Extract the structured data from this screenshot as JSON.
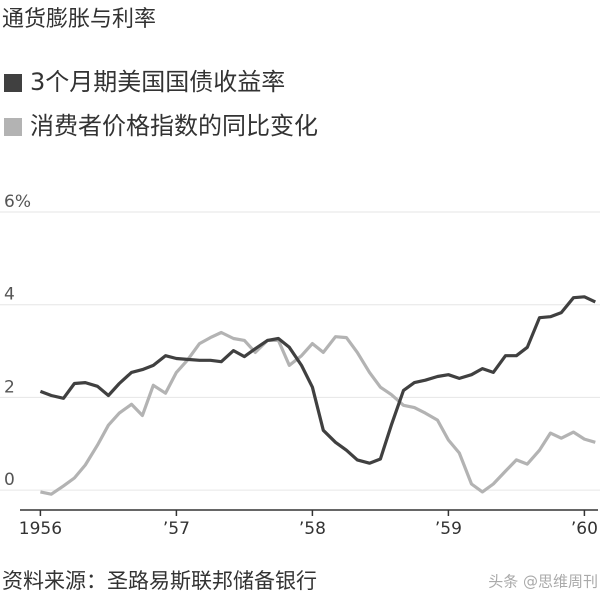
{
  "chart_data": {
    "type": "line",
    "title": "通货膨胀与利率",
    "source": "资料来源：圣路易斯联邦储备银行",
    "watermark": "头条 @思维周刊",
    "x": [
      1956,
      1956.08,
      1956.17,
      1956.25,
      1956.33,
      1956.42,
      1956.5,
      1956.58,
      1956.67,
      1956.75,
      1956.83,
      1956.92,
      1957,
      1957.08,
      1957.17,
      1957.25,
      1957.33,
      1957.42,
      1957.5,
      1957.58,
      1957.67,
      1957.75,
      1957.83,
      1957.92,
      1958,
      1958.08,
      1958.17,
      1958.25,
      1958.33,
      1958.42,
      1958.5,
      1958.58,
      1958.67,
      1958.75,
      1958.83,
      1958.92,
      1959,
      1959.08,
      1959.17,
      1959.25,
      1959.33,
      1959.42,
      1959.5,
      1959.58,
      1959.67,
      1959.75,
      1959.83,
      1959.92,
      1960,
      1960.08
    ],
    "series": [
      {
        "name": "3个月期美国国债收益率",
        "color": "#404040",
        "values": [
          2.13,
          2.04,
          1.98,
          2.3,
          2.32,
          2.24,
          2.04,
          2.3,
          2.54,
          2.6,
          2.69,
          2.9,
          2.84,
          2.82,
          2.8,
          2.8,
          2.77,
          3.01,
          2.88,
          3.05,
          3.23,
          3.27,
          3.08,
          2.69,
          2.22,
          1.29,
          1.03,
          0.86,
          0.65,
          0.58,
          0.67,
          1.4,
          2.15,
          2.32,
          2.37,
          2.45,
          2.49,
          2.41,
          2.49,
          2.62,
          2.54,
          2.9,
          2.9,
          3.08,
          3.72,
          3.74,
          3.83,
          4.15,
          4.17,
          4.06
        ]
      },
      {
        "name": "消费者价格指数的同比变化",
        "color": "#b3b3b3",
        "values": [
          -0.04,
          -0.09,
          0.09,
          0.26,
          0.54,
          0.97,
          1.4,
          1.66,
          1.85,
          1.61,
          2.26,
          2.09,
          2.54,
          2.8,
          3.16,
          3.29,
          3.4,
          3.27,
          3.23,
          2.97,
          3.23,
          3.23,
          2.69,
          2.9,
          3.16,
          2.97,
          3.31,
          3.29,
          2.97,
          2.54,
          2.22,
          2.06,
          1.83,
          1.78,
          1.66,
          1.51,
          1.08,
          0.8,
          0.13,
          -0.04,
          0.13,
          0.41,
          0.65,
          0.56,
          0.86,
          1.23,
          1.12,
          1.25,
          1.1,
          1.03
        ]
      }
    ],
    "xlim": [
      1955.85,
      1960.1
    ],
    "xticks": [
      1956,
      {
        "value": 1957,
        "label": "’57"
      },
      {
        "value": 1958,
        "label": "’58"
      },
      {
        "value": 1959,
        "label": "’59"
      },
      {
        "value": 1960,
        "label": "’60"
      }
    ],
    "ylim": [
      -0.43,
      6
    ],
    "yticks": [
      0,
      2,
      4,
      {
        "value": 6,
        "label": "6%"
      }
    ],
    "grid": true
  }
}
